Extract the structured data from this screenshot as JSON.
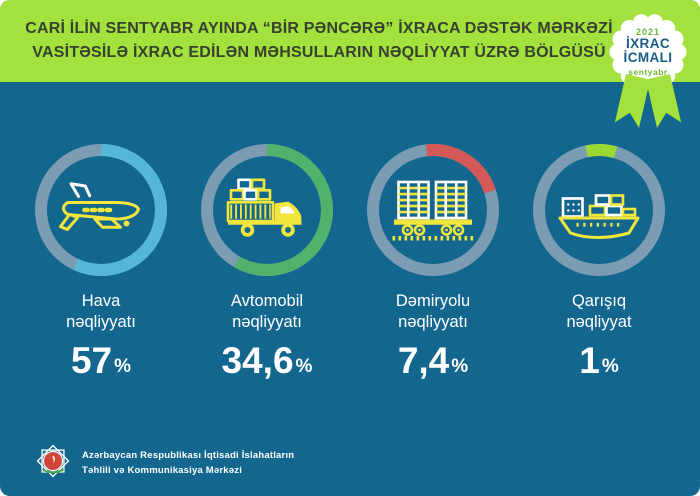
{
  "title": {
    "line1": "CARİ İLİN SENTYABR AYINDA “BİR PƏNCƏRƏ” İXRACA DƏSTƏK MƏRKƏZİ",
    "line2": "VASİTƏSİLƏ İXRAC EDİLƏN MƏHSULLARIN NƏQLİYYAT ÜZRƏ BÖLGÜSÜ"
  },
  "badge": {
    "year": "2021",
    "line1": "İXRAC",
    "line2": "İCMALI",
    "month": "sentyabr"
  },
  "chart_data": {
    "type": "donut-set",
    "title": "Cari ilin sentyabr ayında “Bir Pəncərə” İxraca Dəstək Mərkəzi vasitəsilə ixrac edilən məhsulların nəqliyyat üzrə bölgüsü",
    "ring_track_color": "#7b9cb3",
    "unit": "%",
    "items": [
      {
        "label_line1": "Hava",
        "label_line2": "nəqliyyatı",
        "value": 57,
        "value_display": "57",
        "unit": "%",
        "arc_color": "#55b7d7",
        "arc_deg": 205,
        "arc_start": 0,
        "icon": "airplane"
      },
      {
        "label_line1": "Avtomobil",
        "label_line2": "nəqliyyatı",
        "value": 34.6,
        "value_display": "34,6",
        "unit": "%",
        "arc_color": "#52b16a",
        "arc_deg": 210,
        "arc_start": 0,
        "icon": "truck"
      },
      {
        "label_line1": "Dəmiryolu",
        "label_line2": "nəqliyyatı",
        "value": 7.4,
        "value_display": "7,4",
        "unit": "%",
        "arc_color": "#d45856",
        "arc_deg": 78,
        "arc_start": -6,
        "icon": "rail-wagon"
      },
      {
        "label_line1": "Qarışıq",
        "label_line2": "nəqliyyat",
        "value": 1,
        "value_display": "1",
        "unit": "%",
        "arc_color": "#9ad933",
        "arc_deg": 28,
        "arc_start": -12,
        "icon": "cargo-ship"
      }
    ]
  },
  "footer": {
    "org_line1": "Azərbaycan Respublikası İqtisadi İslahatların",
    "org_line2": "Təhlili və Kommunikasiya Mərkəzi"
  },
  "colors": {
    "background": "#13678f",
    "header_green": "#a3e13c",
    "ring_track": "#7b9cb3",
    "icon_yellow": "#f2e63d",
    "title_text": "#38402f",
    "badge_blue": "#1a5c87",
    "badge_green": "#6cb52f",
    "white": "#ffffff"
  }
}
